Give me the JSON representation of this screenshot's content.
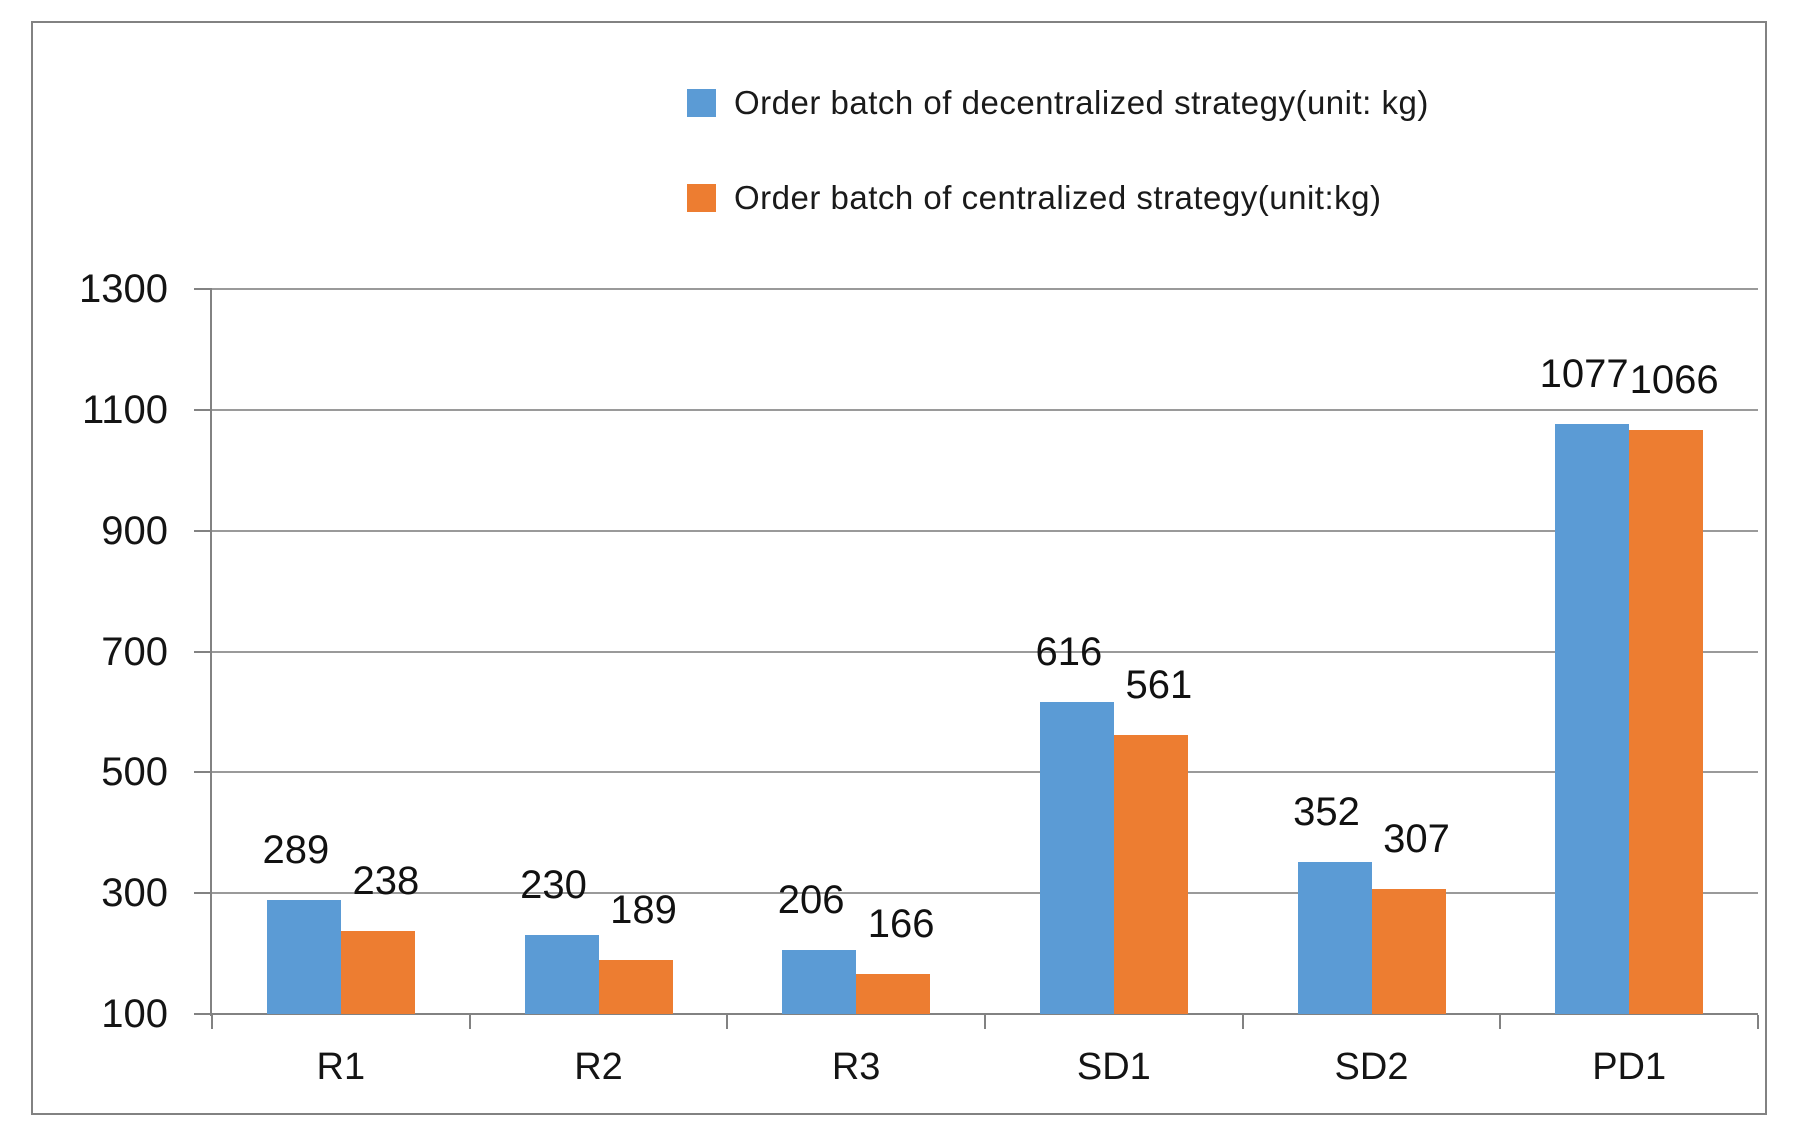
{
  "chart_data": {
    "type": "bar",
    "title": "",
    "xlabel": "",
    "ylabel": "",
    "categories": [
      "R1",
      "R2",
      "R3",
      "SD1",
      "SD2",
      "PD1"
    ],
    "series": [
      {
        "name": "Order batch of decentralized strategy(unit: kg)",
        "color": "#5B9BD5",
        "values": [
          289,
          230,
          206,
          616,
          352,
          1077
        ]
      },
      {
        "name": "Order batch of centralized strategy(unit:kg)",
        "color": "#ED7D31",
        "values": [
          238,
          189,
          166,
          561,
          307,
          1066
        ]
      }
    ],
    "ylim": [
      100,
      1300
    ],
    "yticks": [
      100,
      300,
      500,
      700,
      900,
      1100,
      1300
    ],
    "grid": true,
    "legend_position": "top-center",
    "data_labels": true
  },
  "style_colors": {
    "series_blue": "#5B9BD5",
    "series_orange": "#ED7D31",
    "gridline": "#9a9a9a",
    "axis": "#828282",
    "frame_border": "#828282",
    "text": "#141414",
    "background": "#ffffff"
  }
}
